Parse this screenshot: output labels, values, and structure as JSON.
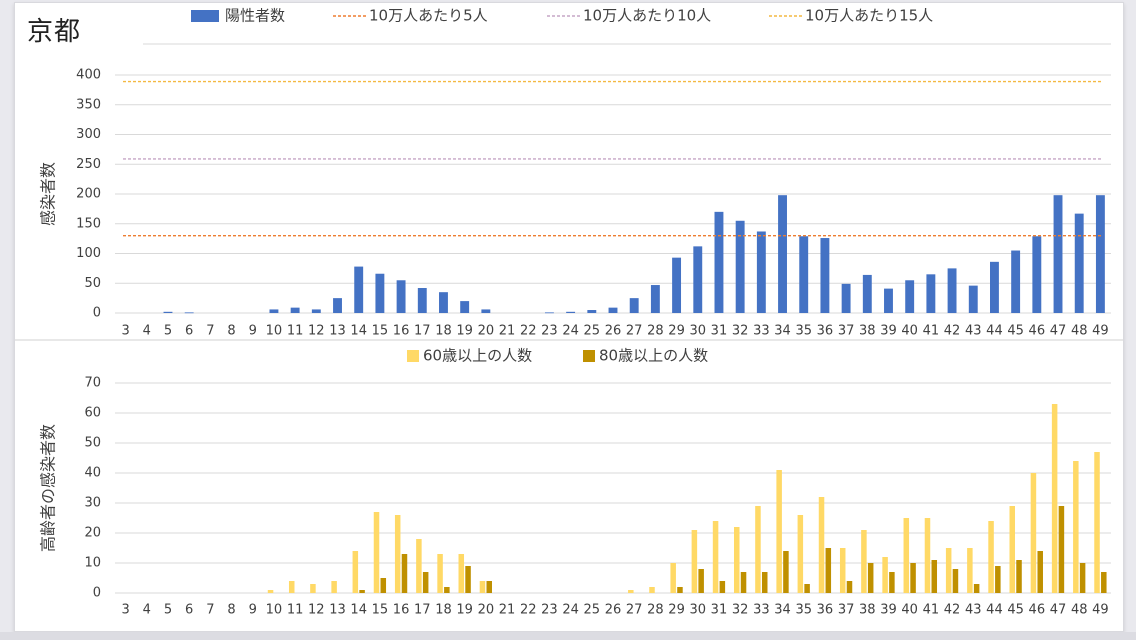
{
  "title": "京都",
  "colors": {
    "positive": "#4472c4",
    "over60": "#ffd966",
    "over80": "#bf9000",
    "line5": "#ed7d31",
    "line10": "#c5a5c5",
    "line15": "#f4b942",
    "grid": "#d9d9d9",
    "axis_text": "#404040"
  },
  "chart_data": [
    {
      "type": "bar",
      "categories": [
        "3",
        "4",
        "5",
        "6",
        "7",
        "8",
        "9",
        "10",
        "11",
        "12",
        "13",
        "14",
        "15",
        "16",
        "17",
        "18",
        "19",
        "20",
        "21",
        "22",
        "23",
        "24",
        "25",
        "26",
        "27",
        "28",
        "29",
        "30",
        "31",
        "32",
        "33",
        "34",
        "35",
        "36",
        "37",
        "38",
        "39",
        "40",
        "41",
        "42",
        "43",
        "44",
        "45",
        "46",
        "47",
        "48",
        "49"
      ],
      "series": [
        {
          "name": "陽性者数",
          "values": [
            0,
            0,
            2,
            1,
            0,
            0,
            0,
            6,
            9,
            6,
            25,
            78,
            66,
            55,
            42,
            35,
            20,
            6,
            0,
            0,
            1,
            2,
            5,
            9,
            25,
            47,
            93,
            112,
            170,
            155,
            137,
            198,
            129,
            126,
            49,
            64,
            41,
            55,
            65,
            75,
            46,
            86,
            105,
            129,
            198,
            167,
            198
          ]
        }
      ],
      "reference_lines": [
        {
          "name": "10万人あたり5人",
          "value": 130,
          "color_key": "line5"
        },
        {
          "name": "10万人あたり10人",
          "value": 259,
          "color_key": "line10"
        },
        {
          "name": "10万人あたり15人",
          "value": 389,
          "color_key": "line15"
        }
      ],
      "ylabel": "感染者数",
      "ylim": [
        0,
        400
      ],
      "yticks": [
        0,
        50,
        100,
        150,
        200,
        250,
        300,
        350,
        400
      ],
      "legend": "top",
      "grid": true
    },
    {
      "type": "bar",
      "categories": [
        "3",
        "4",
        "5",
        "6",
        "7",
        "8",
        "9",
        "10",
        "11",
        "12",
        "13",
        "14",
        "15",
        "16",
        "17",
        "18",
        "19",
        "20",
        "21",
        "22",
        "23",
        "24",
        "25",
        "26",
        "27",
        "28",
        "29",
        "30",
        "31",
        "32",
        "33",
        "34",
        "35",
        "36",
        "37",
        "38",
        "39",
        "40",
        "41",
        "42",
        "43",
        "44",
        "45",
        "46",
        "47",
        "48",
        "49"
      ],
      "series": [
        {
          "name": "60歳以上の人数",
          "values": [
            0,
            0,
            0,
            0,
            0,
            0,
            0,
            1,
            4,
            3,
            4,
            14,
            27,
            26,
            18,
            13,
            13,
            4,
            0,
            0,
            0,
            0,
            0,
            0,
            1,
            2,
            10,
            21,
            24,
            22,
            29,
            41,
            26,
            32,
            15,
            21,
            12,
            25,
            25,
            15,
            15,
            24,
            29,
            40,
            63,
            44,
            47
          ]
        },
        {
          "name": "80歳以上の人数",
          "values": [
            0,
            0,
            0,
            0,
            0,
            0,
            0,
            0,
            0,
            0,
            0,
            1,
            5,
            13,
            7,
            2,
            9,
            4,
            0,
            0,
            0,
            0,
            0,
            0,
            0,
            0,
            2,
            8,
            4,
            7,
            7,
            14,
            3,
            15,
            4,
            10,
            7,
            10,
            11,
            8,
            3,
            9,
            11,
            14,
            29,
            10,
            7
          ]
        }
      ],
      "ylabel": "高齢者の感染者数",
      "ylim": [
        0,
        70
      ],
      "yticks": [
        0,
        10,
        20,
        30,
        40,
        50,
        60,
        70
      ],
      "legend": "top",
      "grid": true
    }
  ]
}
